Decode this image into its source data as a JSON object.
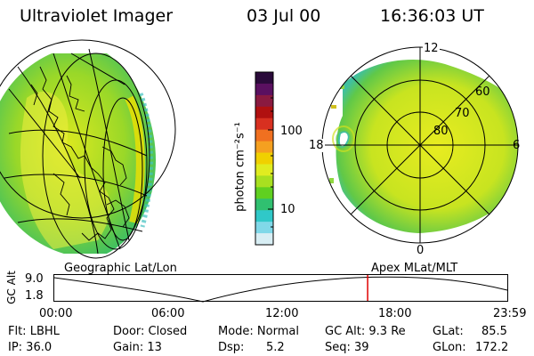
{
  "header": {
    "title": "Ultraviolet Imager",
    "date": "03 Jul 00",
    "time": "16:36:03 UT"
  },
  "colorbar": {
    "unit_label": "photon cm⁻²s⁻¹",
    "ticks": [
      "100",
      "10"
    ],
    "colors": [
      "#2a0a3a",
      "#5a1060",
      "#8a1a40",
      "#b01010",
      "#d83020",
      "#f07020",
      "#f5a020",
      "#f0d000",
      "#e0ec20",
      "#a8e020",
      "#60d020",
      "#30c070",
      "#30c8c8",
      "#80d8e8",
      "#d8eef4"
    ]
  },
  "left_panel": {
    "label": "Geographic Lat/Lon"
  },
  "right_panel": {
    "label": "Apex  MLat/MLT",
    "mlt_labels": {
      "top": "12",
      "left": "18",
      "right": "6",
      "bottom": "0"
    },
    "lat_labels": [
      "60",
      "70",
      "80"
    ]
  },
  "altitude_plot": {
    "ylabel": "GC Alt",
    "yticks": [
      "9.0",
      "1.8"
    ],
    "xticks": [
      "00:00",
      "06:00",
      "12:00",
      "18:00",
      "23:59"
    ],
    "current_time_fraction": 0.6917,
    "marker_color": "#e00000"
  },
  "info": {
    "flt": "Flt: LBHL",
    "ip": "IP: 36.0",
    "door": "Door: Closed",
    "gain": "Gain: 13",
    "mode": "Mode: Normal",
    "dsp_label": "Dsp:",
    "dsp_value": "5.2",
    "gcalt": "GC Alt: 9.3 Re",
    "seq": "Seq: 39",
    "glat_label": "GLat:",
    "glat_value": "85.5",
    "glon_label": "GLon:",
    "glon_value": "172.2"
  }
}
